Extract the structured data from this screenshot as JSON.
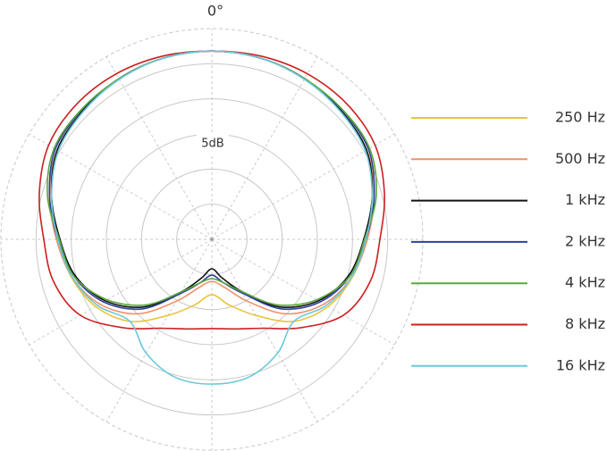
{
  "chart_data": {
    "type": "polar",
    "title": "0°",
    "ring_label": "5dB",
    "rlim": [
      -30,
      0
    ],
    "rticks": [
      -25,
      -20,
      -15,
      -10,
      -5,
      0
    ],
    "theta": [
      0,
      15,
      30,
      45,
      60,
      75,
      90,
      105,
      120,
      135,
      150,
      165,
      180,
      195,
      210,
      225,
      240,
      255,
      270,
      285,
      300,
      315,
      330,
      345
    ],
    "series": [
      {
        "name": "250 Hz",
        "color": "#e8c53a",
        "values": [
          -3.2,
          -3.3,
          -3.6,
          -4.1,
          -4.6,
          -6.1,
          -8.0,
          -9.3,
          -10.9,
          -13.5,
          -17.5,
          -20.3,
          -22.1,
          -20.3,
          -17.5,
          -13.5,
          -10.9,
          -9.3,
          -8.0,
          -6.1,
          -4.6,
          -4.1,
          -3.6,
          -3.3
        ]
      },
      {
        "name": "500 Hz",
        "color": "#f0926a",
        "values": [
          -3.2,
          -3.3,
          -3.6,
          -4.1,
          -4.6,
          -6.1,
          -7.9,
          -9.4,
          -11.6,
          -15.0,
          -19.8,
          -22.9,
          -24.0,
          -22.9,
          -19.8,
          -15.0,
          -11.6,
          -9.4,
          -7.9,
          -6.1,
          -4.6,
          -4.1,
          -3.6,
          -3.3
        ]
      },
      {
        "name": "1 kHz",
        "color": "#111111",
        "values": [
          -3.2,
          -3.3,
          -3.6,
          -4.1,
          -4.6,
          -6.4,
          -8.4,
          -9.9,
          -12.5,
          -16.4,
          -21.4,
          -24.3,
          -25.8,
          -24.3,
          -21.4,
          -16.4,
          -12.5,
          -9.9,
          -8.4,
          -6.4,
          -4.6,
          -4.1,
          -3.6,
          -3.3
        ]
      },
      {
        "name": "2 kHz",
        "color": "#2e3f9e",
        "values": [
          -3.2,
          -3.3,
          -3.6,
          -3.9,
          -4.3,
          -6.1,
          -8.1,
          -9.7,
          -12.2,
          -16.0,
          -21.1,
          -23.6,
          -24.9,
          -23.6,
          -21.1,
          -16.0,
          -12.2,
          -9.7,
          -8.1,
          -6.1,
          -4.3,
          -3.9,
          -3.6,
          -3.3
        ]
      },
      {
        "name": "4 kHz",
        "color": "#5aa83a",
        "values": [
          -3.2,
          -3.3,
          -3.6,
          -3.8,
          -4.1,
          -5.8,
          -8.3,
          -9.7,
          -12.8,
          -16.8,
          -21.4,
          -23.6,
          -24.4,
          -23.6,
          -21.4,
          -16.8,
          -12.8,
          -9.7,
          -8.3,
          -5.8,
          -4.1,
          -3.8,
          -3.6,
          -3.3
        ]
      },
      {
        "name": "8 kHz",
        "color": "#cc1f1f",
        "values": [
          -3.2,
          -3.0,
          -2.8,
          -2.8,
          -3.2,
          -4.6,
          -6.1,
          -6.7,
          -8.4,
          -12.2,
          -15.4,
          -16.8,
          -17.3,
          -16.8,
          -15.4,
          -12.2,
          -8.4,
          -6.7,
          -6.1,
          -4.6,
          -3.2,
          -2.8,
          -2.8,
          -3.0
        ]
      },
      {
        "name": "16 kHz",
        "color": "#6cc8dc",
        "values": [
          -3.2,
          -3.3,
          -3.7,
          -4.2,
          -4.8,
          -6.4,
          -8.1,
          -9.4,
          -11.2,
          -13.5,
          -11.3,
          -9.7,
          -9.4,
          -9.7,
          -11.3,
          -13.5,
          -11.2,
          -9.4,
          -8.1,
          -6.4,
          -4.8,
          -4.2,
          -3.7,
          -3.3
        ]
      }
    ]
  }
}
